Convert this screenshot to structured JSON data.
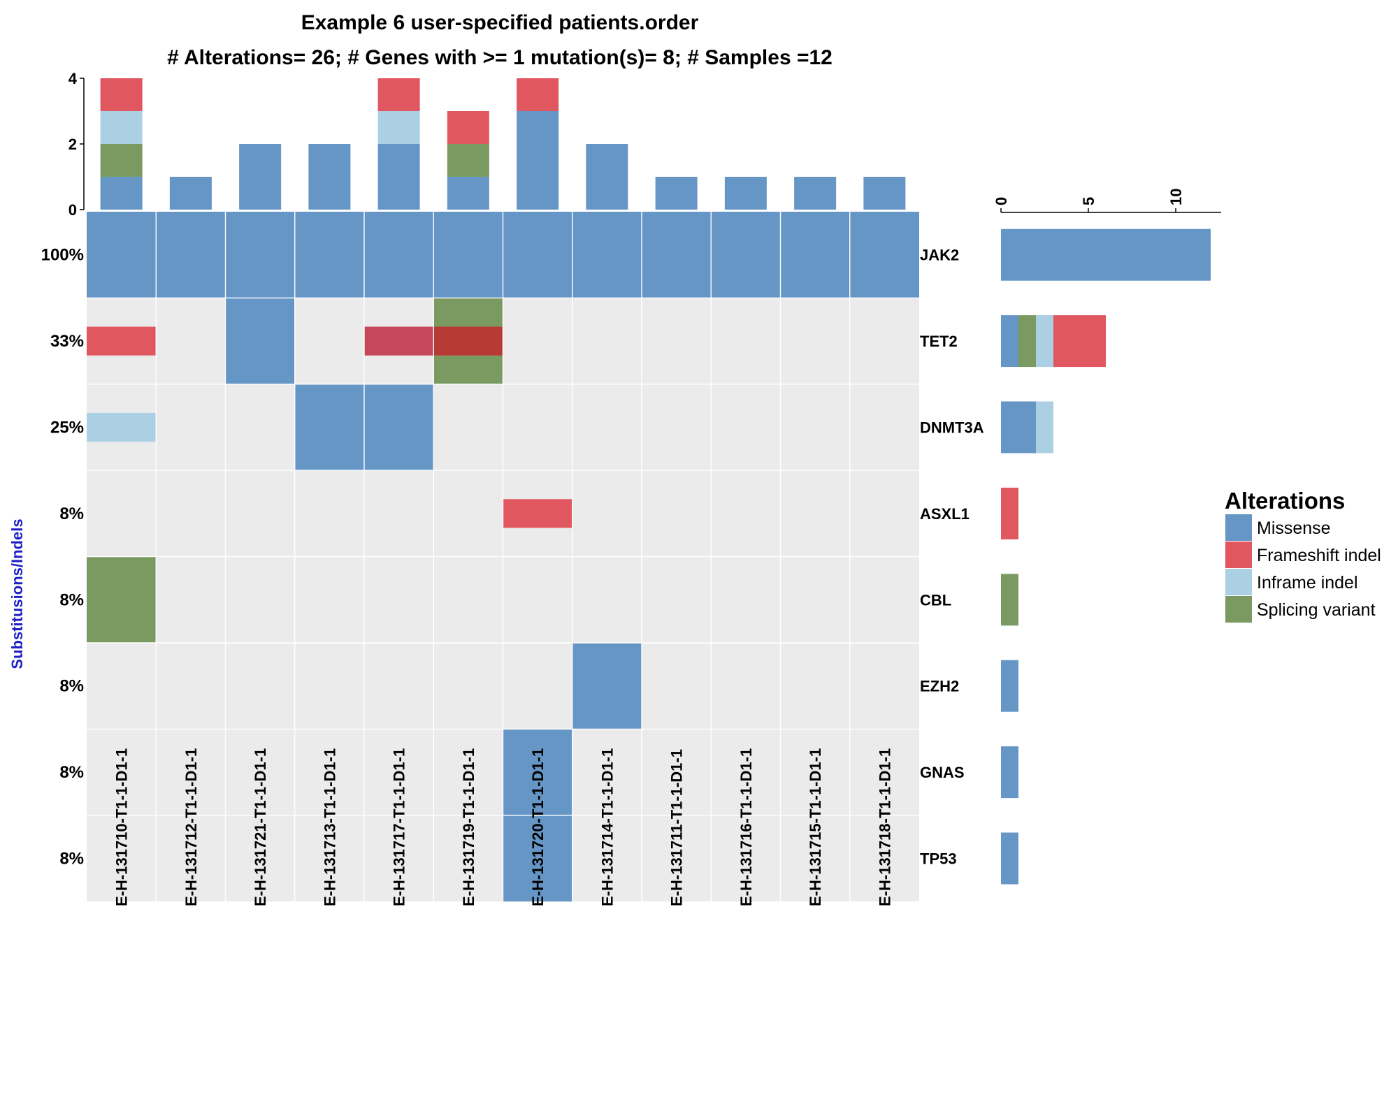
{
  "colors": {
    "Missense": "#6596c5",
    "Frameshift indel": "#e05760",
    "Inframe indel": "#abd0e4",
    "Splicing variant": "#7b9a62",
    "background": "#ebebeb",
    "ylabel": "#1f1fc8"
  },
  "chart_data": [
    {
      "type": "heatmap",
      "title": "Example 6 user-specified patients.order",
      "subtitle": "# Alterations= 26; # Genes with >= 1 mutation(s)= 8; # Samples =12",
      "ylabel": "Substitusions/Indels",
      "samples": [
        "E-H-131710-T1-1-D1-1",
        "E-H-131712-T1-1-D1-1",
        "E-H-131721-T1-1-D1-1",
        "E-H-131713-T1-1-D1-1",
        "E-H-131717-T1-1-D1-1",
        "E-H-131719-T1-1-D1-1",
        "E-H-131720-T1-1-D1-1",
        "E-H-131714-T1-1-D1-1",
        "E-H-131711-T1-1-D1-1",
        "E-H-131716-T1-1-D1-1",
        "E-H-131715-T1-1-D1-1",
        "E-H-131718-T1-1-D1-1"
      ],
      "genes": [
        "JAK2",
        "TET2",
        "DNMT3A",
        "ASXL1",
        "CBL",
        "EZH2",
        "GNAS",
        "TP53"
      ],
      "percentages": [
        "100%",
        "33%",
        "25%",
        "8%",
        "8%",
        "8%",
        "8%",
        "8%"
      ],
      "cells": [
        {
          "gene": "JAK2",
          "sample": 0,
          "alterations": [
            "Missense"
          ]
        },
        {
          "gene": "JAK2",
          "sample": 1,
          "alterations": [
            "Missense"
          ]
        },
        {
          "gene": "JAK2",
          "sample": 2,
          "alterations": [
            "Missense"
          ]
        },
        {
          "gene": "JAK2",
          "sample": 3,
          "alterations": [
            "Missense"
          ]
        },
        {
          "gene": "JAK2",
          "sample": 4,
          "alterations": [
            "Missense"
          ]
        },
        {
          "gene": "JAK2",
          "sample": 5,
          "alterations": [
            "Missense"
          ]
        },
        {
          "gene": "JAK2",
          "sample": 6,
          "alterations": [
            "Missense"
          ]
        },
        {
          "gene": "JAK2",
          "sample": 7,
          "alterations": [
            "Missense"
          ]
        },
        {
          "gene": "JAK2",
          "sample": 8,
          "alterations": [
            "Missense"
          ]
        },
        {
          "gene": "JAK2",
          "sample": 9,
          "alterations": [
            "Missense"
          ]
        },
        {
          "gene": "JAK2",
          "sample": 10,
          "alterations": [
            "Missense"
          ]
        },
        {
          "gene": "JAK2",
          "sample": 11,
          "alterations": [
            "Missense"
          ]
        },
        {
          "gene": "TET2",
          "sample": 0,
          "alterations": [
            "Frameshift indel"
          ]
        },
        {
          "gene": "TET2",
          "sample": 2,
          "alterations": [
            "Missense"
          ]
        },
        {
          "gene": "TET2",
          "sample": 4,
          "alterations": [
            "Frameshift indel"
          ]
        },
        {
          "gene": "TET2",
          "sample": 5,
          "alterations": [
            "Splicing variant",
            "Frameshift indel"
          ]
        },
        {
          "gene": "DNMT3A",
          "sample": 0,
          "alterations": [
            "Inframe indel"
          ]
        },
        {
          "gene": "DNMT3A",
          "sample": 3,
          "alterations": [
            "Missense"
          ]
        },
        {
          "gene": "DNMT3A",
          "sample": 4,
          "alterations": [
            "Missense"
          ]
        },
        {
          "gene": "ASXL1",
          "sample": 6,
          "alterations": [
            "Frameshift indel"
          ]
        },
        {
          "gene": "CBL",
          "sample": 0,
          "alterations": [
            "Splicing variant"
          ]
        },
        {
          "gene": "EZH2",
          "sample": 7,
          "alterations": [
            "Missense"
          ]
        },
        {
          "gene": "GNAS",
          "sample": 6,
          "alterations": [
            "Missense"
          ]
        },
        {
          "gene": "TP53",
          "sample": 6,
          "alterations": [
            "Missense"
          ]
        }
      ]
    },
    {
      "type": "bar",
      "categories": [
        "E-H-131710-T1-1-D1-1",
        "E-H-131712-T1-1-D1-1",
        "E-H-131721-T1-1-D1-1",
        "E-H-131713-T1-1-D1-1",
        "E-H-131717-T1-1-D1-1",
        "E-H-131719-T1-1-D1-1",
        "E-H-131720-T1-1-D1-1",
        "E-H-131714-T1-1-D1-1",
        "E-H-131711-T1-1-D1-1",
        "E-H-131716-T1-1-D1-1",
        "E-H-131715-T1-1-D1-1",
        "E-H-131718-T1-1-D1-1"
      ],
      "stacked": true,
      "series": [
        {
          "name": "Missense",
          "values": [
            1,
            1,
            2,
            2,
            2,
            1,
            3,
            2,
            1,
            1,
            1,
            1
          ]
        },
        {
          "name": "Splicing variant",
          "values": [
            1,
            0,
            0,
            0,
            0,
            1,
            0,
            0,
            0,
            0,
            0,
            0
          ]
        },
        {
          "name": "Inframe indel",
          "values": [
            1,
            0,
            0,
            0,
            1,
            0,
            0,
            0,
            0,
            0,
            0,
            0
          ]
        },
        {
          "name": "Frameshift indel",
          "values": [
            1,
            0,
            0,
            0,
            1,
            1,
            1,
            0,
            0,
            0,
            0,
            0
          ]
        }
      ],
      "ylim": [
        0,
        4
      ],
      "yticks": [
        "0",
        "2",
        "4"
      ]
    },
    {
      "type": "bar",
      "orientation": "horizontal",
      "stacked": true,
      "categories": [
        "JAK2",
        "TET2",
        "DNMT3A",
        "ASXL1",
        "CBL",
        "EZH2",
        "GNAS",
        "TP53"
      ],
      "series": [
        {
          "name": "Missense",
          "values": [
            12,
            1,
            2,
            0,
            0,
            1,
            1,
            1
          ]
        },
        {
          "name": "Splicing variant",
          "values": [
            0,
            1,
            0,
            0,
            1,
            0,
            0,
            0
          ]
        },
        {
          "name": "Inframe indel",
          "values": [
            0,
            1,
            1,
            0,
            0,
            0,
            0,
            0
          ]
        },
        {
          "name": "Frameshift indel",
          "values": [
            0,
            3,
            0,
            1,
            0,
            0,
            0,
            0
          ]
        }
      ],
      "xlim": [
        0,
        12.6
      ],
      "xticks": [
        "0",
        "5",
        "10"
      ]
    }
  ],
  "legend": {
    "title": "Alterations",
    "items": [
      "Missense",
      "Frameshift indel",
      "Inframe indel",
      "Splicing variant"
    ]
  }
}
